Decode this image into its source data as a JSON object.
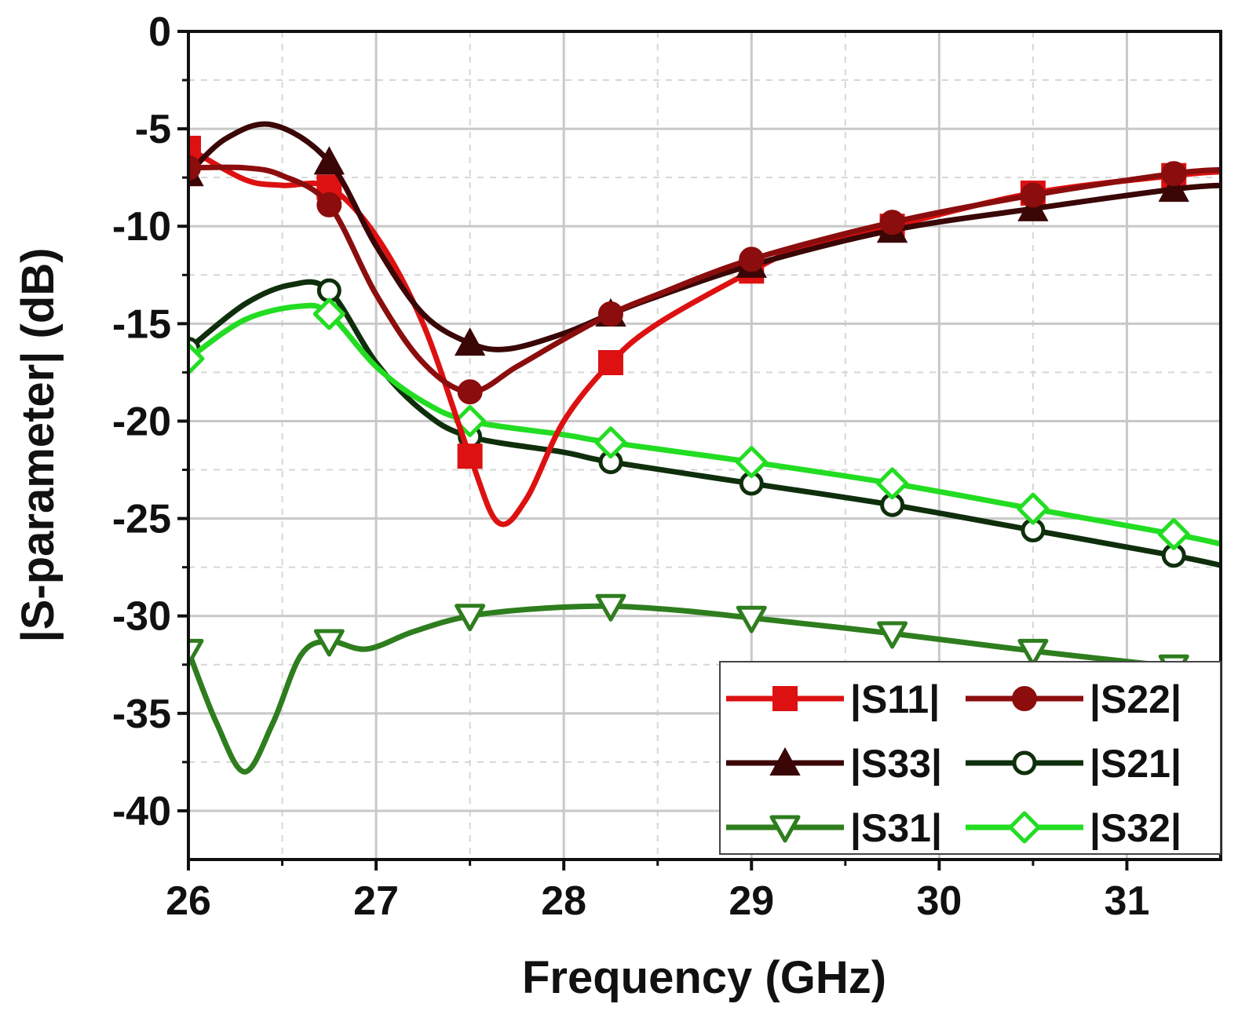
{
  "chart_data": {
    "type": "line",
    "xlabel": "Frequency (GHz)",
    "ylabel": "|S-parameter| (dB)",
    "xlim": [
      26,
      31.5
    ],
    "ylim": [
      -42.5,
      0
    ],
    "xticks": [
      26,
      27,
      28,
      29,
      30,
      31
    ],
    "yticks": [
      0,
      -5,
      -10,
      -15,
      -20,
      -25,
      -30,
      -35,
      -40
    ],
    "grid": true,
    "legend_position": "bottom-right",
    "series": [
      {
        "name": "|S11|",
        "color": "#dd1111",
        "marker": "square-filled",
        "points": [
          [
            26,
            -6.0
          ],
          [
            26.3,
            -7.6
          ],
          [
            26.5,
            -7.9
          ],
          [
            26.75,
            -8.0
          ],
          [
            27,
            -10.5
          ],
          [
            27.25,
            -15.0
          ],
          [
            27.5,
            -21.8
          ],
          [
            27.65,
            -25.2
          ],
          [
            27.8,
            -24.0
          ],
          [
            28,
            -20.0
          ],
          [
            28.25,
            -17.0
          ],
          [
            28.5,
            -15.0
          ],
          [
            29,
            -12.3
          ],
          [
            29.25,
            -11.2
          ],
          [
            29.75,
            -10.0
          ],
          [
            30.5,
            -8.3
          ],
          [
            31.25,
            -7.4
          ],
          [
            31.5,
            -7.2
          ]
        ],
        "markers": [
          [
            26,
            -6.0
          ],
          [
            26.75,
            -8.0
          ],
          [
            27.5,
            -21.8
          ],
          [
            28.25,
            -17.0
          ],
          [
            29,
            -12.3
          ],
          [
            29.75,
            -10.0
          ],
          [
            30.5,
            -8.3
          ],
          [
            31.25,
            -7.4
          ]
        ]
      },
      {
        "name": "|S22|",
        "color": "#8b0d0d",
        "marker": "circle-filled",
        "points": [
          [
            26,
            -7.0
          ],
          [
            26.3,
            -7.0
          ],
          [
            26.5,
            -7.4
          ],
          [
            26.75,
            -8.9
          ],
          [
            27,
            -13.5
          ],
          [
            27.25,
            -17.0
          ],
          [
            27.5,
            -18.5
          ],
          [
            27.75,
            -17.2
          ],
          [
            28,
            -15.8
          ],
          [
            28.25,
            -14.5
          ],
          [
            28.5,
            -13.5
          ],
          [
            29,
            -11.7
          ],
          [
            29.75,
            -9.8
          ],
          [
            30.5,
            -8.4
          ],
          [
            31.25,
            -7.3
          ],
          [
            31.5,
            -7.1
          ]
        ],
        "markers": [
          [
            26,
            -7.0
          ],
          [
            26.75,
            -8.9
          ],
          [
            27.5,
            -18.5
          ],
          [
            28.25,
            -14.5
          ],
          [
            29,
            -11.7
          ],
          [
            29.75,
            -9.8
          ],
          [
            30.5,
            -8.4
          ],
          [
            31.25,
            -7.3
          ]
        ]
      },
      {
        "name": "|S33|",
        "color": "#3a0606",
        "marker": "triangle-up-filled",
        "points": [
          [
            26,
            -7.3
          ],
          [
            26.2,
            -5.5
          ],
          [
            26.45,
            -4.8
          ],
          [
            26.75,
            -6.7
          ],
          [
            27,
            -11.0
          ],
          [
            27.25,
            -14.5
          ],
          [
            27.5,
            -16.0
          ],
          [
            27.7,
            -16.3
          ],
          [
            28,
            -15.5
          ],
          [
            28.25,
            -14.5
          ],
          [
            28.5,
            -13.6
          ],
          [
            29,
            -12.0
          ],
          [
            29.75,
            -10.2
          ],
          [
            30.5,
            -9.1
          ],
          [
            31.25,
            -8.1
          ],
          [
            31.5,
            -7.9
          ]
        ],
        "markers": [
          [
            26,
            -7.3
          ],
          [
            26.75,
            -6.7
          ],
          [
            27.5,
            -16.0
          ],
          [
            28.25,
            -14.5
          ],
          [
            29,
            -12.0
          ],
          [
            29.75,
            -10.2
          ],
          [
            30.5,
            -9.1
          ],
          [
            31.25,
            -8.1
          ]
        ]
      },
      {
        "name": "|S21|",
        "color": "#0f2f0c",
        "marker": "circle-open",
        "points": [
          [
            26,
            -16.3
          ],
          [
            26.3,
            -14.0
          ],
          [
            26.55,
            -13.0
          ],
          [
            26.75,
            -13.3
          ],
          [
            27,
            -17.0
          ],
          [
            27.25,
            -19.5
          ],
          [
            27.5,
            -20.8
          ],
          [
            28,
            -21.6
          ],
          [
            28.25,
            -22.1
          ],
          [
            29,
            -23.2
          ],
          [
            29.75,
            -24.3
          ],
          [
            30.5,
            -25.6
          ],
          [
            31.25,
            -26.9
          ],
          [
            31.5,
            -27.4
          ]
        ],
        "markers": [
          [
            26,
            -16.3
          ],
          [
            26.75,
            -13.3
          ],
          [
            27.5,
            -20.8
          ],
          [
            28.25,
            -22.1
          ],
          [
            29,
            -23.2
          ],
          [
            29.75,
            -24.3
          ],
          [
            30.5,
            -25.6
          ],
          [
            31.25,
            -26.9
          ]
        ]
      },
      {
        "name": "|S31|",
        "color": "#2e7d1e",
        "marker": "triangle-down-open",
        "points": [
          [
            26,
            -31.8
          ],
          [
            26.15,
            -35.5
          ],
          [
            26.3,
            -38.0
          ],
          [
            26.45,
            -35.5
          ],
          [
            26.6,
            -32.0
          ],
          [
            26.75,
            -31.3
          ],
          [
            26.95,
            -31.7
          ],
          [
            27.2,
            -30.8
          ],
          [
            27.5,
            -30.0
          ],
          [
            27.9,
            -29.6
          ],
          [
            28.25,
            -29.5
          ],
          [
            28.6,
            -29.7
          ],
          [
            29,
            -30.1
          ],
          [
            29.75,
            -30.9
          ],
          [
            30.5,
            -31.8
          ],
          [
            31.25,
            -32.6
          ],
          [
            31.5,
            -32.9
          ]
        ],
        "markers": [
          [
            26,
            -31.8
          ],
          [
            26.75,
            -31.3
          ],
          [
            27.5,
            -30.0
          ],
          [
            28.25,
            -29.5
          ],
          [
            29,
            -30.1
          ],
          [
            29.75,
            -30.9
          ],
          [
            30.5,
            -31.8
          ],
          [
            31.25,
            -32.6
          ]
        ]
      },
      {
        "name": "|S32|",
        "color": "#22dd22",
        "marker": "diamond-open",
        "points": [
          [
            26,
            -16.8
          ],
          [
            26.3,
            -14.8
          ],
          [
            26.6,
            -14.1
          ],
          [
            26.75,
            -14.5
          ],
          [
            27,
            -17.2
          ],
          [
            27.25,
            -19.0
          ],
          [
            27.5,
            -20.0
          ],
          [
            28,
            -20.7
          ],
          [
            28.25,
            -21.1
          ],
          [
            29,
            -22.1
          ],
          [
            29.75,
            -23.2
          ],
          [
            30.5,
            -24.5
          ],
          [
            31.25,
            -25.8
          ],
          [
            31.5,
            -26.3
          ]
        ],
        "markers": [
          [
            26,
            -16.8
          ],
          [
            26.75,
            -14.5
          ],
          [
            27.5,
            -20.0
          ],
          [
            28.25,
            -21.1
          ],
          [
            29,
            -22.1
          ],
          [
            29.75,
            -23.2
          ],
          [
            30.5,
            -24.5
          ],
          [
            31.25,
            -25.8
          ]
        ]
      }
    ]
  }
}
